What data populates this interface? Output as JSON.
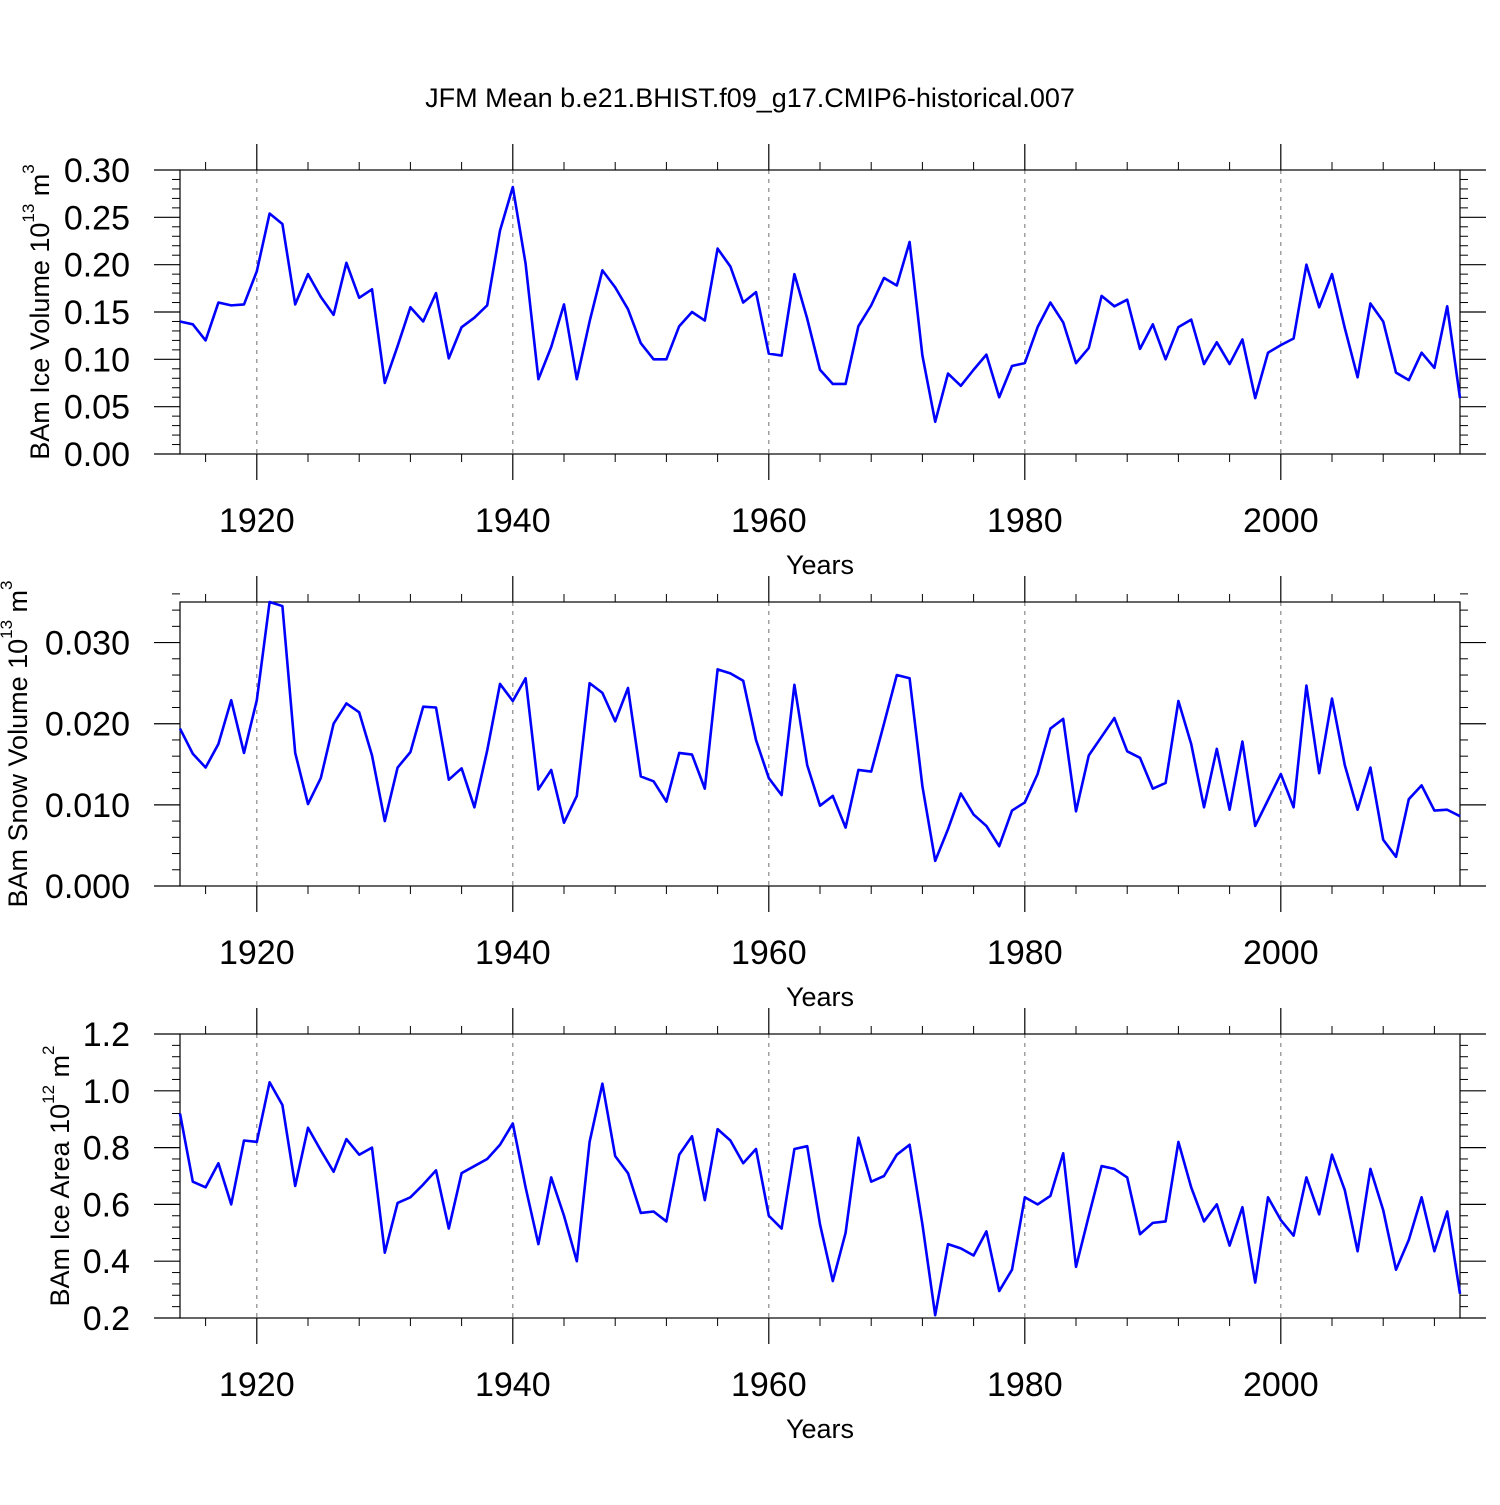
{
  "title": "JFM Mean b.e21.BHIST.f09_g17.CMIP6-historical.007",
  "colors": {
    "line": "#0000ff",
    "axis": "#000000",
    "grid": "#888888"
  },
  "chart_data": [
    {
      "type": "line",
      "ylabel": {
        "main": "BAm Ice Volume 10",
        "exponent": "13",
        "unit": " m",
        "unit_exponent": "3"
      },
      "xlabel": "Years",
      "xlim": [
        1914,
        2014
      ],
      "ylim": [
        0.0,
        0.3
      ],
      "x_ticks": [
        1920,
        1940,
        1960,
        1980,
        2000
      ],
      "x_tick_labels": [
        "1920",
        "1940",
        "1960",
        "1980",
        "2000"
      ],
      "y_ticks": [
        0.0,
        0.05,
        0.1,
        0.15,
        0.2,
        0.25,
        0.3
      ],
      "y_tick_labels": [
        "0.00",
        "0.05",
        "0.10",
        "0.15",
        "0.20",
        "0.25",
        "0.30"
      ],
      "y_minor_step": 0.01,
      "x_start": 1914,
      "values": [
        0.14,
        0.137,
        0.12,
        0.16,
        0.157,
        0.158,
        0.193,
        0.254,
        0.243,
        0.158,
        0.19,
        0.166,
        0.147,
        0.202,
        0.165,
        0.174,
        0.075,
        0.114,
        0.155,
        0.14,
        0.17,
        0.101,
        0.134,
        0.144,
        0.157,
        0.236,
        0.282,
        0.201,
        0.079,
        0.113,
        0.158,
        0.079,
        0.14,
        0.194,
        0.176,
        0.153,
        0.117,
        0.1,
        0.1,
        0.135,
        0.15,
        0.141,
        0.217,
        0.198,
        0.16,
        0.171,
        0.106,
        0.104,
        0.19,
        0.143,
        0.089,
        0.074,
        0.074,
        0.135,
        0.157,
        0.186,
        0.178,
        0.224,
        0.104,
        0.034,
        0.085,
        0.072,
        0.089,
        0.105,
        0.06,
        0.093,
        0.096,
        0.134,
        0.16,
        0.139,
        0.096,
        0.112,
        0.167,
        0.156,
        0.163,
        0.111,
        0.137,
        0.1,
        0.134,
        0.142,
        0.095,
        0.118,
        0.095,
        0.121,
        0.059,
        0.107,
        0.115,
        0.122,
        0.2,
        0.155,
        0.19,
        0.133,
        0.081,
        0.159,
        0.14,
        0.086,
        0.078,
        0.107,
        0.091,
        0.156,
        0.059
      ]
    },
    {
      "type": "line",
      "ylabel": {
        "main": "BAm Snow Volume 10",
        "exponent": "13",
        "unit": " m",
        "unit_exponent": "3"
      },
      "xlabel": "Years",
      "xlim": [
        1914,
        2014
      ],
      "ylim": [
        0.0,
        0.035
      ],
      "x_ticks": [
        1920,
        1940,
        1960,
        1980,
        2000
      ],
      "x_tick_labels": [
        "1920",
        "1940",
        "1960",
        "1980",
        "2000"
      ],
      "y_ticks": [
        0.0,
        0.01,
        0.02,
        0.03
      ],
      "y_tick_labels": [
        "0.000",
        "0.010",
        "0.020",
        "0.030"
      ],
      "y_minor_step": 0.002,
      "x_start": 1914,
      "values": [
        0.0194,
        0.0163,
        0.0146,
        0.0175,
        0.0229,
        0.0164,
        0.0229,
        0.035,
        0.0345,
        0.0164,
        0.0101,
        0.0133,
        0.02,
        0.0225,
        0.0214,
        0.0161,
        0.008,
        0.0146,
        0.0165,
        0.0221,
        0.022,
        0.0131,
        0.0145,
        0.0097,
        0.0167,
        0.0249,
        0.0228,
        0.0256,
        0.0119,
        0.0143,
        0.0078,
        0.0111,
        0.025,
        0.0238,
        0.0203,
        0.0244,
        0.0135,
        0.0129,
        0.0104,
        0.0164,
        0.0162,
        0.012,
        0.0267,
        0.0262,
        0.0253,
        0.018,
        0.0133,
        0.0112,
        0.0248,
        0.0149,
        0.0099,
        0.0111,
        0.0072,
        0.0143,
        0.0141,
        0.02,
        0.026,
        0.0256,
        0.0123,
        0.0031,
        0.007,
        0.0114,
        0.0088,
        0.0074,
        0.0049,
        0.0093,
        0.0103,
        0.0138,
        0.0194,
        0.0206,
        0.0092,
        0.0161,
        0.0184,
        0.0207,
        0.0166,
        0.0158,
        0.012,
        0.0127,
        0.0228,
        0.0175,
        0.0097,
        0.0169,
        0.0094,
        0.0178,
        0.0074,
        0.0106,
        0.0138,
        0.0097,
        0.0247,
        0.0139,
        0.0231,
        0.0149,
        0.0094,
        0.0146,
        0.0057,
        0.0036,
        0.0107,
        0.0124,
        0.0093,
        0.0094,
        0.0086
      ]
    },
    {
      "type": "line",
      "ylabel": {
        "main": "BAm Ice Area 10",
        "exponent": "12",
        "unit": " m",
        "unit_exponent": "2"
      },
      "xlabel": "Years",
      "xlim": [
        1914,
        2014
      ],
      "ylim": [
        0.2,
        1.2
      ],
      "x_ticks": [
        1920,
        1940,
        1960,
        1980,
        2000
      ],
      "x_tick_labels": [
        "1920",
        "1940",
        "1960",
        "1980",
        "2000"
      ],
      "y_ticks": [
        0.2,
        0.4,
        0.6,
        0.8,
        1.0,
        1.2
      ],
      "y_tick_labels": [
        "0.2",
        "0.4",
        "0.6",
        "0.8",
        "1.0",
        "1.2"
      ],
      "y_minor_step": 0.04,
      "x_start": 1914,
      "values": [
        0.92,
        0.68,
        0.66,
        0.745,
        0.6,
        0.825,
        0.82,
        1.03,
        0.95,
        0.665,
        0.87,
        0.79,
        0.715,
        0.83,
        0.775,
        0.8,
        0.43,
        0.605,
        0.625,
        0.67,
        0.72,
        0.515,
        0.71,
        0.735,
        0.76,
        0.81,
        0.885,
        0.66,
        0.46,
        0.695,
        0.56,
        0.4,
        0.82,
        1.025,
        0.77,
        0.71,
        0.57,
        0.575,
        0.54,
        0.775,
        0.84,
        0.615,
        0.865,
        0.825,
        0.745,
        0.795,
        0.56,
        0.515,
        0.795,
        0.805,
        0.53,
        0.33,
        0.5,
        0.835,
        0.68,
        0.7,
        0.775,
        0.81,
        0.53,
        0.21,
        0.46,
        0.445,
        0.42,
        0.505,
        0.295,
        0.37,
        0.625,
        0.6,
        0.63,
        0.78,
        0.38,
        0.56,
        0.735,
        0.725,
        0.695,
        0.495,
        0.535,
        0.54,
        0.82,
        0.66,
        0.54,
        0.6,
        0.455,
        0.59,
        0.325,
        0.625,
        0.545,
        0.49,
        0.695,
        0.565,
        0.775,
        0.65,
        0.435,
        0.725,
        0.58,
        0.37,
        0.475,
        0.625,
        0.435,
        0.575,
        0.285
      ]
    }
  ]
}
